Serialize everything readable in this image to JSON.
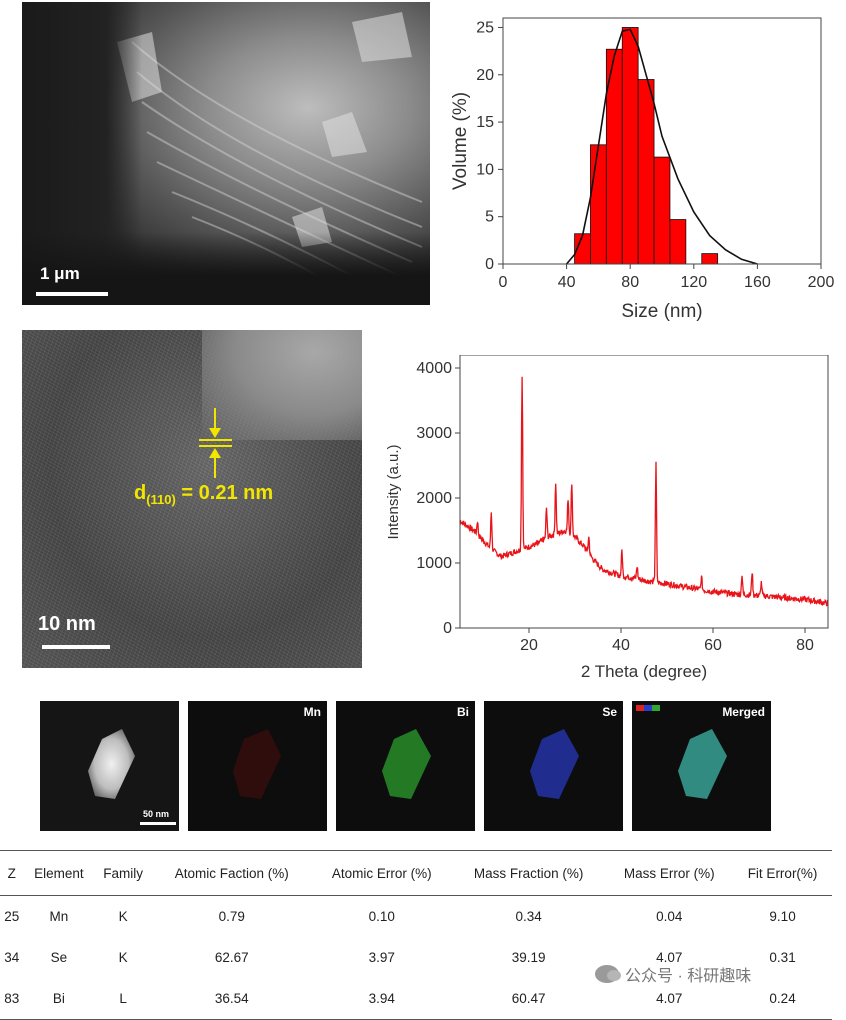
{
  "sem": {
    "scale_label": "1 μm"
  },
  "tem": {
    "scale_label": "10 nm",
    "d_label_main": "d",
    "d_label_sub": "(110)",
    "d_label_value": " = 0.21 nm"
  },
  "histogram": {
    "chart_data": {
      "type": "bar",
      "x": [
        50,
        60,
        70,
        80,
        90,
        100,
        110,
        120,
        130,
        140
      ],
      "values": [
        3.2,
        12.6,
        22.7,
        25.0,
        19.5,
        11.3,
        4.7,
        0,
        1.1,
        0
      ],
      "bin_width": 10,
      "fit_curve": {
        "x": [
          40,
          45,
          50,
          55,
          60,
          65,
          70,
          75,
          80,
          85,
          90,
          95,
          100,
          110,
          120,
          130,
          140,
          150,
          160
        ],
        "y": [
          0,
          1,
          3,
          7,
          12.5,
          18,
          22,
          24.6,
          24.8,
          23,
          20,
          17,
          13.5,
          9,
          5.5,
          3,
          1.5,
          0.5,
          0
        ]
      },
      "xlabel": "Size (nm)",
      "ylabel": "Volume (%)",
      "xlim": [
        0,
        200
      ],
      "ylim": [
        0,
        26
      ],
      "xticks": [
        "0",
        "40",
        "80",
        "120",
        "160",
        "200"
      ],
      "xtick_values": [
        0,
        40,
        80,
        120,
        160,
        200
      ],
      "yticks": [
        "0",
        "5",
        "10",
        "15",
        "20",
        "25"
      ],
      "ytick_values": [
        0,
        5,
        10,
        15,
        20,
        25
      ],
      "bar_color": "#ff0000"
    }
  },
  "xrd": {
    "chart_data": {
      "type": "line",
      "xlabel": "2 Theta (degree)",
      "ylabel": "Intensity (a.u.)",
      "xlim": [
        5,
        85
      ],
      "ylim": [
        0,
        4200
      ],
      "xticks": [
        "20",
        "40",
        "60",
        "80"
      ],
      "xtick_values": [
        20,
        40,
        60,
        80
      ],
      "yticks": [
        "0",
        "1000",
        "2000",
        "3000",
        "4000"
      ],
      "ytick_values": [
        0,
        1000,
        2000,
        3000,
        4000
      ],
      "line_color": "#e8141a",
      "baseline": {
        "x": [
          5,
          8,
          10,
          12,
          14,
          16,
          18,
          20,
          22,
          24,
          26,
          28,
          30,
          32,
          34,
          36,
          38,
          40,
          42,
          44,
          46,
          48,
          50,
          55,
          60,
          65,
          70,
          75,
          80,
          85
        ],
        "y": [
          1650,
          1500,
          1350,
          1200,
          1100,
          1150,
          1200,
          1250,
          1300,
          1400,
          1450,
          1500,
          1400,
          1250,
          1050,
          900,
          850,
          800,
          780,
          750,
          720,
          700,
          680,
          620,
          560,
          520,
          500,
          470,
          440,
          380
        ]
      },
      "peaks": [
        {
          "x": 8.8,
          "y": 1650
        },
        {
          "x": 11.8,
          "y": 1800
        },
        {
          "x": 18.5,
          "y": 3900
        },
        {
          "x": 23.8,
          "y": 1850
        },
        {
          "x": 25.8,
          "y": 2250
        },
        {
          "x": 28.5,
          "y": 2000
        },
        {
          "x": 29.3,
          "y": 2250
        },
        {
          "x": 33.0,
          "y": 1400
        },
        {
          "x": 40.2,
          "y": 1200
        },
        {
          "x": 43.5,
          "y": 950
        },
        {
          "x": 47.6,
          "y": 2520
        },
        {
          "x": 57.5,
          "y": 780
        },
        {
          "x": 66.3,
          "y": 820
        },
        {
          "x": 68.5,
          "y": 870
        },
        {
          "x": 70.5,
          "y": 700
        }
      ]
    }
  },
  "maps": [
    {
      "label": "",
      "scale_label": "50 nm"
    },
    {
      "label": "Mn"
    },
    {
      "label": "Bi"
    },
    {
      "label": "Se"
    },
    {
      "label": "Merged"
    }
  ],
  "table": {
    "headers": [
      "Z",
      "Element",
      "Family",
      "Atomic Faction (%)",
      "Atomic Error (%)",
      "Mass Fraction (%)",
      "Mass Error (%)",
      "Fit Error(%)"
    ],
    "rows": [
      [
        "25",
        "Mn",
        "K",
        "0.79",
        "0.10",
        "0.34",
        "0.04",
        "9.10"
      ],
      [
        "34",
        "Se",
        "K",
        "62.67",
        "3.97",
        "39.19",
        "4.07",
        "0.31"
      ],
      [
        "83",
        "Bi",
        "L",
        "36.54",
        "3.94",
        "60.47",
        "4.07",
        "0.24"
      ]
    ]
  },
  "watermark": {
    "text": "公众号 · 科研趣味"
  }
}
